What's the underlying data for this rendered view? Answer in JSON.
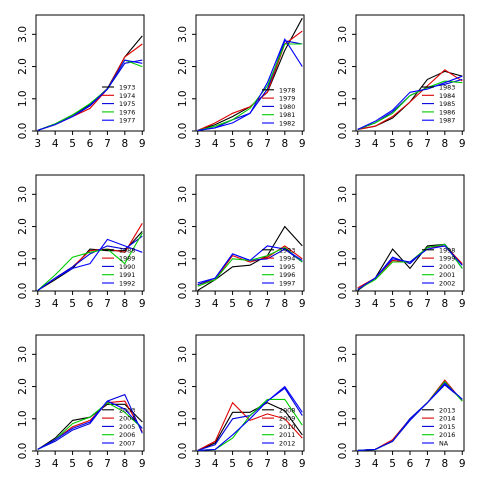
{
  "figure": {
    "background": "#ffffff"
  },
  "chart_data": [
    {
      "type": "line",
      "x": [
        3,
        4,
        5,
        6,
        7,
        8,
        9
      ],
      "xticks": [
        "3",
        "4",
        "5",
        "6",
        "7",
        "8",
        "9"
      ],
      "yticks": [
        "0.0",
        "1.0",
        "2.0",
        "3.0"
      ],
      "ylim": [
        0,
        3.6
      ],
      "legend_position": "center-right",
      "series": [
        {
          "name": "1973",
          "color": "#000000",
          "values": [
            0.02,
            0.22,
            0.5,
            0.82,
            1.32,
            2.3,
            2.95
          ]
        },
        {
          "name": "1974",
          "color": "#dd0000",
          "values": [
            0.02,
            0.2,
            0.45,
            0.7,
            1.3,
            2.3,
            2.7
          ]
        },
        {
          "name": "1975",
          "color": "#0000dd",
          "values": [
            0.02,
            0.22,
            0.45,
            0.78,
            1.3,
            2.1,
            2.2
          ]
        },
        {
          "name": "1976",
          "color": "#00cc00",
          "values": [
            0.02,
            0.22,
            0.5,
            0.85,
            1.3,
            2.2,
            2.0
          ]
        },
        {
          "name": "1977",
          "color": "#0000ff",
          "values": [
            0.02,
            0.2,
            0.45,
            0.8,
            1.3,
            2.2,
            2.1
          ]
        }
      ]
    },
    {
      "type": "line",
      "x": [
        3,
        4,
        5,
        6,
        7,
        8,
        9
      ],
      "xticks": [
        "3",
        "4",
        "5",
        "6",
        "7",
        "8",
        "9"
      ],
      "yticks": [
        "0.0",
        "1.0",
        "2.0",
        "3.0"
      ],
      "ylim": [
        0,
        3.6
      ],
      "legend_position": "bottom-right",
      "series": [
        {
          "name": "1978",
          "color": "#000000",
          "values": [
            0.02,
            0.2,
            0.45,
            0.75,
            1.2,
            2.5,
            3.5
          ]
        },
        {
          "name": "1979",
          "color": "#dd0000",
          "values": [
            0.02,
            0.25,
            0.55,
            0.75,
            1.2,
            2.7,
            3.1
          ]
        },
        {
          "name": "1980",
          "color": "#0000dd",
          "values": [
            0.02,
            0.1,
            0.35,
            0.55,
            1.3,
            2.8,
            2.7
          ]
        },
        {
          "name": "1981",
          "color": "#00cc00",
          "values": [
            0.02,
            0.15,
            0.35,
            0.7,
            1.4,
            2.7,
            2.7
          ]
        },
        {
          "name": "1982",
          "color": "#0000ff",
          "values": [
            0.02,
            0.1,
            0.25,
            0.55,
            1.5,
            2.85,
            2.0
          ]
        }
      ]
    },
    {
      "type": "line",
      "x": [
        3,
        4,
        5,
        6,
        7,
        8,
        9
      ],
      "xticks": [
        "3",
        "4",
        "5",
        "6",
        "7",
        "8",
        "9"
      ],
      "yticks": [
        "0.0",
        "1.0",
        "2.0",
        "3.0"
      ],
      "ylim": [
        0,
        3.6
      ],
      "legend_position": "center-right",
      "series": [
        {
          "name": "1983",
          "color": "#000000",
          "values": [
            0.05,
            0.15,
            0.4,
            0.9,
            1.6,
            1.85,
            1.7
          ]
        },
        {
          "name": "1984",
          "color": "#dd0000",
          "values": [
            0.05,
            0.15,
            0.45,
            0.9,
            1.4,
            1.9,
            1.55
          ]
        },
        {
          "name": "1985",
          "color": "#0000dd",
          "values": [
            0.05,
            0.25,
            0.6,
            1.1,
            1.35,
            1.45,
            1.6
          ]
        },
        {
          "name": "1986",
          "color": "#00cc00",
          "values": [
            0.05,
            0.25,
            0.55,
            1.1,
            1.35,
            1.55,
            1.5
          ]
        },
        {
          "name": "1987",
          "color": "#0000ff",
          "values": [
            0.05,
            0.3,
            0.65,
            1.2,
            1.3,
            1.5,
            1.7
          ]
        }
      ]
    },
    {
      "type": "line",
      "x": [
        3,
        4,
        5,
        6,
        7,
        8,
        9
      ],
      "xticks": [
        "3",
        "4",
        "5",
        "6",
        "7",
        "8",
        "9"
      ],
      "yticks": [
        "0.0",
        "1.0",
        "2.0",
        "3.0"
      ],
      "ylim": [
        0,
        3.6
      ],
      "legend_position": "bottom-right",
      "series": [
        {
          "name": "1988",
          "color": "#000000",
          "values": [
            0.02,
            0.35,
            0.7,
            1.3,
            1.25,
            1.25,
            1.85
          ]
        },
        {
          "name": "1989",
          "color": "#dd0000",
          "values": [
            0.02,
            0.4,
            0.75,
            1.25,
            1.3,
            1.2,
            2.1
          ]
        },
        {
          "name": "1990",
          "color": "#0000dd",
          "values": [
            0.02,
            0.4,
            0.75,
            1.15,
            1.4,
            1.3,
            1.7
          ]
        },
        {
          "name": "1991",
          "color": "#00cc00",
          "values": [
            0.02,
            0.5,
            1.05,
            1.2,
            1.3,
            0.85,
            1.8
          ]
        },
        {
          "name": "1992",
          "color": "#0000ff",
          "values": [
            0.02,
            0.4,
            0.7,
            0.85,
            1.6,
            1.4,
            1.2
          ]
        }
      ]
    },
    {
      "type": "line",
      "x": [
        3,
        4,
        5,
        6,
        7,
        8,
        9
      ],
      "xticks": [
        "3",
        "4",
        "5",
        "6",
        "7",
        "8",
        "9"
      ],
      "yticks": [
        "0.0",
        "1.0",
        "2.0",
        "3.0"
      ],
      "ylim": [
        0,
        3.6
      ],
      "legend_position": "bottom-right",
      "series": [
        {
          "name": "1993",
          "color": "#000000",
          "values": [
            0.02,
            0.35,
            0.75,
            0.8,
            1.1,
            2.0,
            1.4
          ]
        },
        {
          "name": "1994",
          "color": "#dd0000",
          "values": [
            0.2,
            0.35,
            1.1,
            0.9,
            1.05,
            1.4,
            1.0
          ]
        },
        {
          "name": "1995",
          "color": "#0000dd",
          "values": [
            0.2,
            0.4,
            1.15,
            0.95,
            1.0,
            1.3,
            0.9
          ]
        },
        {
          "name": "1996",
          "color": "#00cc00",
          "values": [
            0.15,
            0.35,
            1.0,
            0.95,
            1.1,
            1.35,
            0.9
          ]
        },
        {
          "name": "1997",
          "color": "#0000ff",
          "values": [
            0.25,
            0.4,
            1.15,
            0.95,
            1.4,
            1.3,
            0.95
          ]
        }
      ]
    },
    {
      "type": "line",
      "x": [
        3,
        4,
        5,
        6,
        7,
        8,
        9
      ],
      "xticks": [
        "3",
        "4",
        "5",
        "6",
        "7",
        "8",
        "9"
      ],
      "yticks": [
        "0.0",
        "1.0",
        "2.0",
        "3.0"
      ],
      "ylim": [
        0,
        3.6
      ],
      "legend_position": "bottom-right",
      "series": [
        {
          "name": "1998",
          "color": "#000000",
          "values": [
            0.02,
            0.4,
            1.3,
            0.7,
            1.4,
            1.45,
            0.8
          ]
        },
        {
          "name": "1999",
          "color": "#dd0000",
          "values": [
            0.1,
            0.4,
            0.95,
            0.9,
            1.35,
            1.4,
            0.85
          ]
        },
        {
          "name": "2000",
          "color": "#0000dd",
          "values": [
            0.05,
            0.4,
            1.05,
            0.85,
            1.35,
            1.45,
            0.7
          ]
        },
        {
          "name": "2001",
          "color": "#00cc00",
          "values": [
            0.05,
            0.35,
            0.9,
            0.9,
            1.35,
            1.45,
            0.7
          ]
        },
        {
          "name": "2002",
          "color": "#0000ff",
          "values": [
            0.05,
            0.4,
            1.0,
            0.9,
            1.3,
            1.4,
            0.8
          ]
        }
      ]
    },
    {
      "type": "line",
      "x": [
        3,
        4,
        5,
        6,
        7,
        8,
        9
      ],
      "xticks": [
        "3",
        "4",
        "5",
        "6",
        "7",
        "8",
        "9"
      ],
      "yticks": [
        "0.0",
        "1.0",
        "2.0",
        "3.0"
      ],
      "ylim": [
        0,
        3.6
      ],
      "legend_position": "bottom-right",
      "series": [
        {
          "name": "2003",
          "color": "#000000",
          "values": [
            0.05,
            0.4,
            0.95,
            1.05,
            1.45,
            1.45,
            0.9
          ]
        },
        {
          "name": "2004",
          "color": "#dd0000",
          "values": [
            0.05,
            0.35,
            0.75,
            0.95,
            1.5,
            1.55,
            0.6
          ]
        },
        {
          "name": "2005",
          "color": "#0000dd",
          "values": [
            0.05,
            0.3,
            0.65,
            0.85,
            1.55,
            1.75,
            0.55
          ]
        },
        {
          "name": "2006",
          "color": "#00cc00",
          "values": [
            0.05,
            0.35,
            0.85,
            1.05,
            1.5,
            1.2,
            0.7
          ]
        },
        {
          "name": "2007",
          "color": "#0000ff",
          "values": [
            0.05,
            0.35,
            0.7,
            0.9,
            1.55,
            1.3,
            0.7
          ]
        }
      ]
    },
    {
      "type": "line",
      "x": [
        3,
        4,
        5,
        6,
        7,
        8,
        9
      ],
      "xticks": [
        "3",
        "4",
        "5",
        "6",
        "7",
        "8",
        "9"
      ],
      "yticks": [
        "0.0",
        "1.0",
        "2.0",
        "3.0"
      ],
      "ylim": [
        0,
        3.6
      ],
      "legend_position": "bottom-right",
      "series": [
        {
          "name": "2008",
          "color": "#000000",
          "values": [
            0.02,
            0.25,
            1.2,
            1.2,
            1.5,
            1.25,
            0.5
          ]
        },
        {
          "name": "2009",
          "color": "#dd0000",
          "values": [
            0.02,
            0.3,
            1.5,
            0.95,
            1.15,
            1.0,
            0.4
          ]
        },
        {
          "name": "2010",
          "color": "#0000dd",
          "values": [
            0.02,
            0.2,
            1.0,
            1.1,
            1.55,
            1.95,
            1.1
          ]
        },
        {
          "name": "2011",
          "color": "#00cc00",
          "values": [
            0.02,
            0.05,
            0.4,
            1.1,
            1.6,
            1.6,
            0.8
          ]
        },
        {
          "name": "2012",
          "color": "#0000ff",
          "values": [
            0.02,
            0.05,
            0.5,
            1.0,
            1.55,
            2.0,
            1.2
          ]
        }
      ]
    },
    {
      "type": "line",
      "x": [
        3,
        4,
        5,
        6,
        7,
        8,
        9
      ],
      "xticks": [
        "3",
        "4",
        "5",
        "6",
        "7",
        "8",
        "9"
      ],
      "yticks": [
        "0.0",
        "1.0",
        "2.0",
        "3.0"
      ],
      "ylim": [
        0,
        3.6
      ],
      "legend_position": "bottom-right",
      "series": [
        {
          "name": "2013",
          "color": "#000000",
          "values": [
            0.02,
            0.05,
            0.3,
            1.0,
            1.5,
            2.1,
            1.6
          ]
        },
        {
          "name": "2014",
          "color": "#dd0000",
          "values": [
            0.02,
            0.05,
            0.35,
            1.0,
            1.5,
            2.2,
            1.55
          ]
        },
        {
          "name": "2015",
          "color": "#0000dd",
          "values": [
            0.02,
            0.05,
            0.3,
            0.95,
            1.5,
            2.05,
            1.6
          ]
        },
        {
          "name": "2016",
          "color": "#00cc00",
          "values": [
            0.02,
            0.05,
            0.3,
            1.0,
            1.5,
            2.15,
            1.55
          ]
        },
        {
          "name": "NA",
          "color": "#0000ff",
          "values": [
            0.02,
            0.05,
            0.3,
            1.0,
            1.5,
            2.1,
            1.6
          ]
        }
      ]
    }
  ]
}
